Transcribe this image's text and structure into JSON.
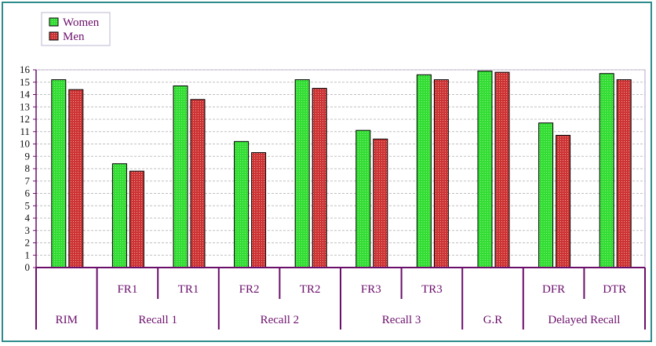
{
  "chart_data": {
    "type": "bar",
    "categories": [
      "",
      "FR1",
      "TR1",
      "FR2",
      "TR2",
      "FR3",
      "TR3",
      "",
      "DFR",
      "DTR"
    ],
    "groups": [
      {
        "label": "RIM",
        "categories": [
          ""
        ]
      },
      {
        "label": "Recall 1",
        "categories": [
          "FR1",
          "TR1"
        ]
      },
      {
        "label": "Recall 2",
        "categories": [
          "FR2",
          "TR2"
        ]
      },
      {
        "label": "Recall 3",
        "categories": [
          "FR3",
          "TR3"
        ]
      },
      {
        "label": "G.R",
        "categories": [
          ""
        ]
      },
      {
        "label": "Delayed Recall",
        "categories": [
          "DFR",
          "DTR"
        ]
      }
    ],
    "series": [
      {
        "name": "Women",
        "color": "#33dd33",
        "values": [
          15.2,
          8.4,
          14.7,
          10.2,
          15.2,
          11.1,
          15.6,
          15.9,
          11.7,
          15.7
        ]
      },
      {
        "name": "Men",
        "color": "#cc3333",
        "values": [
          14.4,
          7.8,
          13.6,
          9.3,
          14.5,
          10.4,
          15.2,
          15.8,
          10.7,
          15.2
        ]
      }
    ],
    "yticks": [
      0,
      1,
      2,
      3,
      4,
      5,
      6,
      7,
      8,
      9,
      10,
      11,
      12,
      13,
      14,
      15,
      16
    ],
    "ylim": [
      0,
      16
    ],
    "grid": true,
    "legend_position": "top-left"
  }
}
